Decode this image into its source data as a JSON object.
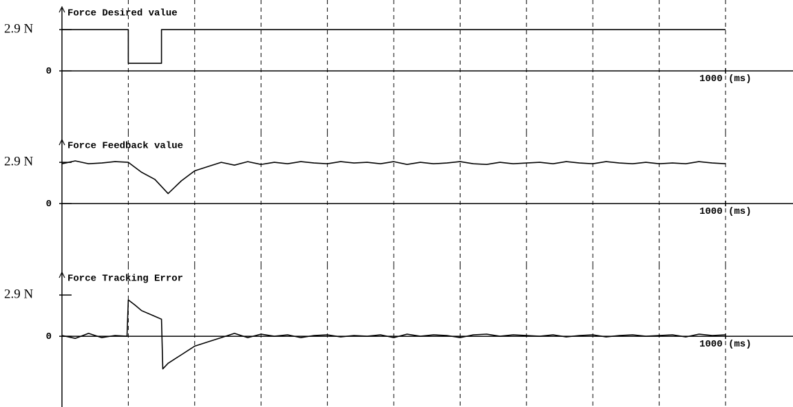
{
  "chart_data": [
    {
      "type": "line",
      "title": "Force Desired value",
      "color": "#000000",
      "x": [
        0,
        100,
        100,
        150,
        150,
        1000
      ],
      "values": [
        2.9,
        2.9,
        0.53,
        0.53,
        2.9,
        2.9
      ],
      "xlim": [
        0,
        1000
      ],
      "xticks": [
        {
          "value": 1000,
          "label": "1000 (ms)"
        }
      ],
      "grid_x": [
        100,
        200,
        300,
        400,
        500,
        600,
        700,
        800,
        900,
        1000
      ],
      "ylim": [
        -4.3,
        4.5
      ],
      "yticks": [
        0,
        {
          "value": 2.9,
          "label": "2.9 N"
        }
      ]
    },
    {
      "type": "line",
      "title": "Force Feedback value",
      "color": "#000000",
      "x": [
        0,
        20,
        40,
        60,
        80,
        100,
        120,
        140,
        160,
        180,
        200,
        220,
        240,
        260,
        280,
        300,
        320,
        340,
        360,
        380,
        400,
        420,
        440,
        460,
        480,
        500,
        520,
        540,
        560,
        580,
        600,
        620,
        640,
        660,
        680,
        700,
        720,
        740,
        760,
        780,
        800,
        820,
        840,
        860,
        880,
        900,
        920,
        940,
        960,
        980,
        1000
      ],
      "values": [
        2.8,
        3.0,
        2.8,
        2.85,
        2.95,
        2.9,
        2.2,
        1.7,
        0.7,
        1.6,
        2.3,
        2.6,
        2.9,
        2.7,
        2.95,
        2.75,
        2.9,
        2.8,
        2.95,
        2.85,
        2.8,
        2.95,
        2.85,
        2.9,
        2.8,
        2.95,
        2.75,
        2.9,
        2.8,
        2.85,
        2.95,
        2.8,
        2.75,
        2.9,
        2.8,
        2.85,
        2.9,
        2.8,
        2.95,
        2.85,
        2.8,
        2.95,
        2.85,
        2.8,
        2.9,
        2.8,
        2.85,
        2.8,
        2.95,
        2.85,
        2.8
      ],
      "xlim": [
        0,
        1000
      ],
      "xticks": [
        {
          "value": 1000,
          "label": "1000 (ms)"
        }
      ],
      "grid_x": [
        100,
        200,
        300,
        400,
        500,
        600,
        700,
        800,
        900,
        1000
      ],
      "ylim": [
        -4.3,
        4.5
      ],
      "yticks": [
        0,
        {
          "value": 2.9,
          "label": "2.9 N"
        }
      ]
    },
    {
      "type": "line",
      "title": "Force Tracking Error",
      "color": "#000000",
      "x": [
        0,
        20,
        40,
        60,
        80,
        98,
        100,
        110,
        120,
        140,
        150,
        152,
        160,
        180,
        200,
        220,
        240,
        260,
        280,
        300,
        320,
        340,
        360,
        380,
        400,
        420,
        440,
        460,
        480,
        500,
        520,
        540,
        560,
        580,
        600,
        620,
        640,
        660,
        680,
        700,
        720,
        740,
        760,
        780,
        800,
        820,
        840,
        860,
        880,
        900,
        920,
        940,
        960,
        980,
        1000
      ],
      "values": [
        0.05,
        -0.15,
        0.2,
        -0.1,
        0.05,
        0.0,
        2.55,
        2.2,
        1.8,
        1.4,
        1.2,
        -2.3,
        -1.9,
        -1.3,
        -0.7,
        -0.4,
        -0.1,
        0.2,
        -0.1,
        0.15,
        0.0,
        0.1,
        -0.1,
        0.05,
        0.1,
        -0.05,
        0.05,
        0.0,
        0.1,
        -0.1,
        0.15,
        0.0,
        0.1,
        0.05,
        -0.1,
        0.1,
        0.15,
        0.0,
        0.1,
        0.05,
        0.0,
        0.1,
        -0.05,
        0.05,
        0.1,
        -0.05,
        0.05,
        0.1,
        0.0,
        0.05,
        0.1,
        -0.05,
        0.15,
        0.05,
        0.1
      ],
      "xlim": [
        0,
        1000
      ],
      "xticks": [
        {
          "value": 1000,
          "label": "1000 (ms)"
        }
      ],
      "grid_x": [
        100,
        200,
        300,
        400,
        500,
        600,
        700,
        800,
        900,
        1000
      ],
      "ylim": [
        -4.3,
        4.5
      ],
      "yticks": [
        0,
        {
          "value": 2.9,
          "label": "2.9 N"
        }
      ]
    }
  ]
}
